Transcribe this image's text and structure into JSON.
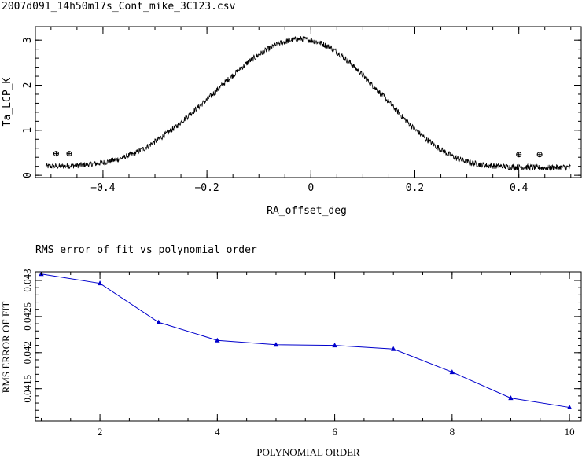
{
  "chart_data": [
    {
      "type": "scatter",
      "title": "2007d091_14h50m17s_Cont_mike_3C123.csv",
      "xlabel": "RA_offset_deg",
      "ylabel": "Ta_LCP_K",
      "xlim": [
        -0.53,
        0.52
      ],
      "ylim": [
        -0.05,
        3.3
      ],
      "xticks": [
        -0.4,
        -0.2,
        0,
        0.2,
        0.4
      ],
      "xtick_labels": [
        "−0.4",
        "−0.2",
        "0",
        "0.2",
        "0.4"
      ],
      "yticks": [
        0,
        1,
        2,
        3
      ],
      "ytick_labels": [
        "0",
        "1",
        "2",
        "3"
      ],
      "grid": false,
      "series": [
        {
          "style": "noisy-trace",
          "color": "#000000",
          "x": [
            -0.51,
            -0.48,
            -0.45,
            -0.42,
            -0.4,
            -0.38,
            -0.36,
            -0.34,
            -0.32,
            -0.3,
            -0.28,
            -0.26,
            -0.24,
            -0.22,
            -0.2,
            -0.18,
            -0.16,
            -0.14,
            -0.12,
            -0.1,
            -0.08,
            -0.06,
            -0.04,
            -0.02,
            0,
            0.02,
            0.04,
            0.06,
            0.08,
            0.1,
            0.12,
            0.14,
            0.16,
            0.18,
            0.2,
            0.22,
            0.24,
            0.26,
            0.28,
            0.3,
            0.32,
            0.34,
            0.36,
            0.38,
            0.4,
            0.42,
            0.44,
            0.46,
            0.48,
            0.5
          ],
          "y": [
            0.2,
            0.2,
            0.22,
            0.25,
            0.28,
            0.33,
            0.4,
            0.48,
            0.6,
            0.75,
            0.9,
            1.08,
            1.28,
            1.48,
            1.68,
            1.9,
            2.12,
            2.32,
            2.52,
            2.68,
            2.82,
            2.93,
            3.0,
            3.03,
            3.0,
            2.93,
            2.82,
            2.65,
            2.45,
            2.22,
            1.98,
            1.75,
            1.5,
            1.25,
            1.02,
            0.82,
            0.65,
            0.5,
            0.38,
            0.3,
            0.25,
            0.22,
            0.2,
            0.19,
            0.18,
            0.18,
            0.17,
            0.17,
            0.18,
            0.18
          ]
        },
        {
          "style": "open-cross-markers",
          "color": "#000000",
          "x": [
            -0.49,
            -0.465,
            0.4,
            0.44
          ],
          "y": [
            0.48,
            0.48,
            0.46,
            0.46
          ]
        }
      ]
    },
    {
      "type": "line",
      "title": "RMS error of fit vs polynomial order",
      "xlabel": "POLYNOMIAL ORDER",
      "ylabel": "RMS ERROR OF FIT",
      "xlim": [
        0.9,
        10.2
      ],
      "ylim": [
        0.04105,
        0.04312
      ],
      "xticks": [
        2,
        4,
        6,
        8,
        10
      ],
      "xtick_labels": [
        "2",
        "4",
        "6",
        "8",
        "10"
      ],
      "yticks": [
        0.0415,
        0.042,
        0.0425,
        0.043
      ],
      "ytick_labels": [
        "0.0415",
        "0.042",
        "0.0425",
        "0.043"
      ],
      "grid": false,
      "series": [
        {
          "color": "#0000cc",
          "marker": "triangle",
          "x": [
            1,
            2,
            3,
            4,
            5,
            6,
            7,
            8,
            9,
            10
          ],
          "y": [
            0.04309,
            0.04296,
            0.04242,
            0.04217,
            0.04211,
            0.0421,
            0.04205,
            0.04173,
            0.04137,
            0.04124
          ]
        }
      ]
    }
  ]
}
